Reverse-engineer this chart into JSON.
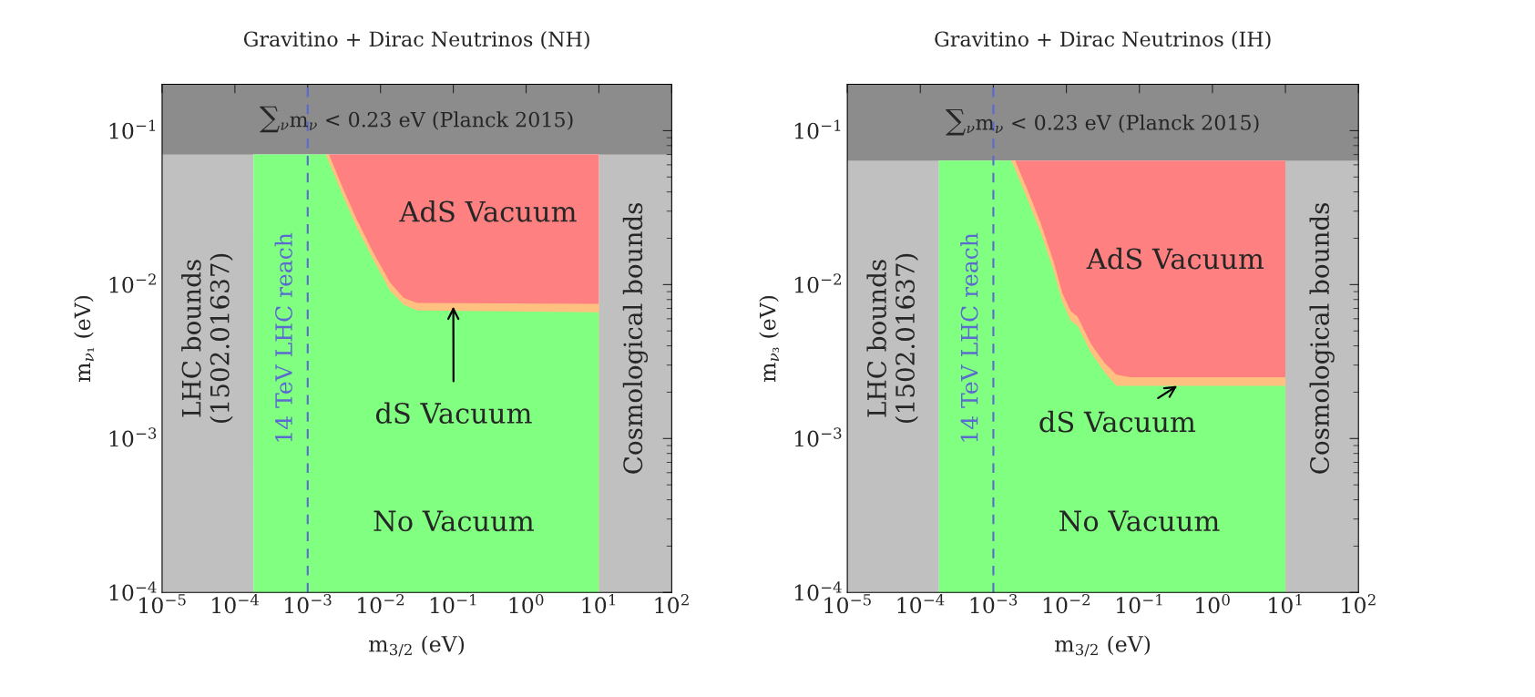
{
  "chart_data": [
    {
      "type": "area",
      "title": "Gravitino + Dirac Neutrinos (NH)",
      "xlabel": "m$_{3/2}$ (eV)",
      "ylabel": "m$_{ν₁}$ (eV)",
      "log": "xy",
      "grid": false,
      "xlim": [
        1e-05,
        100
      ],
      "ylim": [
        0.0001,
        0.2
      ],
      "xticks": [
        {
          "value": 1e-05,
          "label": "10$^{−5}$"
        },
        {
          "value": 0.0001,
          "label": "10$^{−4}$"
        },
        {
          "value": 0.001,
          "label": "10$^{−3}$"
        },
        {
          "value": 0.01,
          "label": "10$^{−2}$"
        },
        {
          "value": 0.1,
          "label": "10$^{−1}$"
        },
        {
          "value": 1,
          "label": "10$^{0}$"
        },
        {
          "value": 10,
          "label": "10$^{1}$"
        },
        {
          "value": 100,
          "label": "10$^{2}$"
        }
      ],
      "yticks": [
        {
          "value": 0.0001,
          "label": "10$^{−4}$"
        },
        {
          "value": 0.001,
          "label": "10$^{−3}$"
        },
        {
          "value": 0.01,
          "label": "10$^{−2}$"
        },
        {
          "value": 0.1,
          "label": "10$^{−1}$"
        }
      ],
      "series": [
        {
          "color": "#ff8080",
          "x": [
            0.00196,
            10
          ],
          "values": [
            0.07,
            0.07
          ]
        },
        {
          "color": "#ffc080",
          "x": [
            0.00176,
            0.00196,
            0.00306,
            0.00468,
            0.008,
            0.0136,
            0.0208,
            0.0318,
            10
          ],
          "values": [
            0.07,
            0.07,
            0.042,
            0.0267,
            0.0161,
            0.0103,
            0.0082,
            0.0076,
            0.0075
          ]
        },
        {
          "color": "#80ff80",
          "x": [
            0.00018,
            0.00176,
            0.00196,
            0.00306,
            0.00468,
            0.008,
            0.0136,
            0.0208,
            0.0318,
            10
          ],
          "values": [
            0.07,
            0.07,
            0.0625,
            0.0374,
            0.0238,
            0.0144,
            0.0091,
            0.0074,
            0.0068,
            0.0066
          ]
        }
      ],
      "bands": [
        {
          "axis": "x",
          "from": 1e-05,
          "to": 0.00018,
          "label": "LHC bounds\n(1502.01637)",
          "color": "#c0c0c0"
        },
        {
          "axis": "x",
          "from": 10,
          "to": 100,
          "label": "Cosmological bounds",
          "color": "#c0c0c0"
        },
        {
          "axis": "y",
          "from": 0.07,
          "to": 0.2,
          "label": "∑$_{ν}$m$_{ν}$ < 0.23 eV (Planck 2015)",
          "color": "#8c8c8c"
        }
      ],
      "ref_lines": [
        {
          "axis": "x",
          "value": 0.001,
          "label": "14 TeV LHC reach",
          "color": "#5a6acf",
          "line_style": "dashed"
        }
      ],
      "annotations": [
        "AdS Vacuum",
        {
          "text": "dS Vacuum",
          "x": 0.1,
          "y": 0.0072
        },
        "No Vacuum"
      ]
    },
    {
      "type": "area",
      "title": "Gravitino + Dirac Neutrinos (IH)",
      "xlabel": "m$_{3/2}$ (eV)",
      "ylabel": "m$_{ν₃}$ (eV)",
      "log": "xy",
      "grid": false,
      "xlim": [
        1e-05,
        100
      ],
      "ylim": [
        0.0001,
        0.2
      ],
      "xticks": [
        {
          "value": 1e-05,
          "label": "10$^{−5}$"
        },
        {
          "value": 0.0001,
          "label": "10$^{−4}$"
        },
        {
          "value": 0.001,
          "label": "10$^{−3}$"
        },
        {
          "value": 0.01,
          "label": "10$^{−2}$"
        },
        {
          "value": 0.1,
          "label": "10$^{−1}$"
        },
        {
          "value": 1,
          "label": "10$^{0}$"
        },
        {
          "value": 10,
          "label": "10$^{1}$"
        },
        {
          "value": 100,
          "label": "10$^{2}$"
        }
      ],
      "yticks": [
        {
          "value": 0.0001,
          "label": "10$^{−4}$"
        },
        {
          "value": 0.001,
          "label": "10$^{−3}$"
        },
        {
          "value": 0.01,
          "label": "10$^{−2}$"
        },
        {
          "value": 0.1,
          "label": "10$^{−1}$"
        }
      ],
      "series": [
        {
          "color": "#ff8080",
          "x": [
            0.00199,
            10
          ],
          "values": [
            0.064,
            0.064
          ]
        },
        {
          "color": "#ffc080",
          "x": [
            0.00175,
            0.00199,
            0.00288,
            0.00442,
            0.00675,
            0.0088,
            0.0115,
            0.0142,
            0.0218,
            0.0333,
            0.0483,
            0.074,
            10
          ],
          "values": [
            0.064,
            0.064,
            0.042,
            0.0253,
            0.0139,
            0.0088,
            0.0067,
            0.0062,
            0.0041,
            0.0031,
            0.0026,
            0.0025,
            0.0025
          ]
        },
        {
          "color": "#80ff80",
          "x": [
            0.00018,
            0.00175,
            0.00199,
            0.00288,
            0.00442,
            0.00675,
            0.0088,
            0.0115,
            0.0142,
            0.0218,
            0.0333,
            0.0483,
            0.074,
            10
          ],
          "values": [
            0.064,
            0.064,
            0.0557,
            0.0365,
            0.022,
            0.0121,
            0.0077,
            0.0058,
            0.0054,
            0.0036,
            0.0027,
            0.0022,
            0.0022,
            0.0022
          ]
        }
      ],
      "bands": [
        {
          "axis": "x",
          "from": 1e-05,
          "to": 0.00018,
          "label": "LHC bounds\n(1502.01637)",
          "color": "#c0c0c0"
        },
        {
          "axis": "x",
          "from": 10,
          "to": 100,
          "label": "Cosmological bounds",
          "color": "#c0c0c0"
        },
        {
          "axis": "y",
          "from": 0.064,
          "to": 0.2,
          "label": "∑$_{ν}$m$_{ν}$ < 0.23 eV (Planck 2015)",
          "color": "#8c8c8c"
        }
      ],
      "ref_lines": [
        {
          "axis": "x",
          "value": 0.001,
          "label": "14 TeV LHC reach",
          "color": "#5a6acf",
          "line_style": "dashed"
        }
      ],
      "annotations": [
        "AdS Vacuum",
        {
          "text": "dS Vacuum",
          "x": 0.33,
          "y": 0.0022
        },
        "No Vacuum"
      ]
    }
  ]
}
